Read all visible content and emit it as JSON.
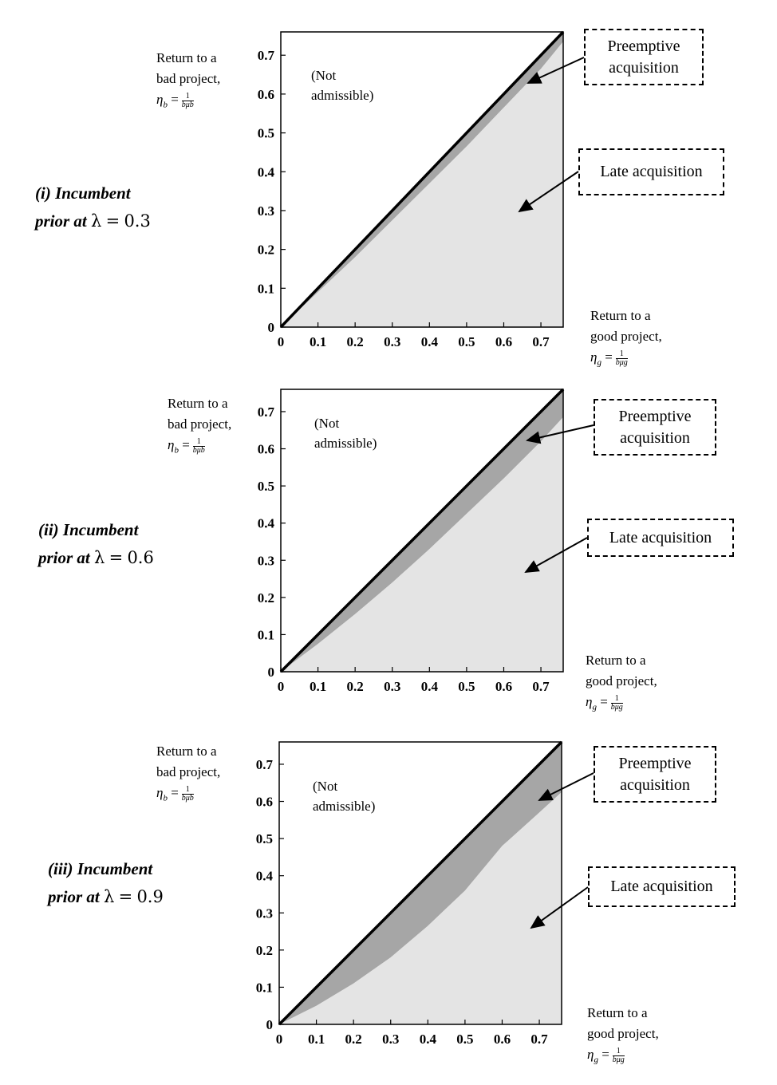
{
  "shared": {
    "ylabel_line1": "Return to a",
    "ylabel_line2": "bad project,",
    "ylabel_eta": "η",
    "ylabel_sub": "b",
    "ylabel_eq": "=",
    "ylabel_frac_num": "1",
    "ylabel_frac_den": "bμb",
    "xlabel_line1": "Return to a",
    "xlabel_line2": "good project,",
    "xlabel_eta": "η",
    "xlabel_sub": "g",
    "xlabel_eq": "=",
    "xlabel_frac_num": "1",
    "xlabel_frac_den": "bμg",
    "na_line1": "(Not",
    "na_line2": "admissible)",
    "preemptive_line1": "Preemptive",
    "preemptive_line2": "acquisition",
    "late_label": "Late acquisition",
    "tick_labels": [
      "0",
      "0.1",
      "0.2",
      "0.3",
      "0.4",
      "0.5",
      "0.6",
      "0.7"
    ],
    "colors": {
      "preemptive": "#a6a6a6",
      "late": "#e4e4e4",
      "diagonal": "#000000"
    }
  },
  "chart_data": [
    {
      "type": "area",
      "title_line1": "(i) Incumbent",
      "title_line2": "prior at",
      "lambda_symbol": "λ",
      "lambda_eq": "=",
      "lambda_value": "0.3",
      "xlim": [
        0,
        0.76
      ],
      "ylim": [
        0,
        0.76
      ],
      "diagonal": [
        [
          0,
          0
        ],
        [
          0.76,
          0.76
        ]
      ],
      "boundary_x": [
        0,
        0.1,
        0.2,
        0.3,
        0.4,
        0.5,
        0.6,
        0.7,
        0.76
      ],
      "boundary_y": [
        0,
        0.09,
        0.18,
        0.275,
        0.37,
        0.465,
        0.565,
        0.665,
        0.735
      ]
    },
    {
      "type": "area",
      "title_line1": "(ii) Incumbent",
      "title_line2": "prior at",
      "lambda_symbol": "λ",
      "lambda_eq": "=",
      "lambda_value": "0.6",
      "xlim": [
        0,
        0.76
      ],
      "ylim": [
        0,
        0.76
      ],
      "diagonal": [
        [
          0,
          0
        ],
        [
          0.76,
          0.76
        ]
      ],
      "boundary_x": [
        0,
        0.1,
        0.2,
        0.3,
        0.4,
        0.5,
        0.6,
        0.7,
        0.76
      ],
      "boundary_y": [
        0,
        0.075,
        0.155,
        0.24,
        0.33,
        0.425,
        0.52,
        0.62,
        0.685
      ]
    },
    {
      "type": "area",
      "title_line1": "(iii) Incumbent",
      "title_line2": "prior at",
      "lambda_symbol": "λ",
      "lambda_eq": "=",
      "lambda_value": "0.9",
      "xlim": [
        0,
        0.76
      ],
      "ylim": [
        0,
        0.76
      ],
      "diagonal": [
        [
          0,
          0
        ],
        [
          0.76,
          0.76
        ]
      ],
      "boundary_x": [
        0,
        0.1,
        0.2,
        0.3,
        0.4,
        0.5,
        0.55,
        0.6,
        0.7,
        0.76
      ],
      "boundary_y": [
        0,
        0.05,
        0.11,
        0.18,
        0.265,
        0.36,
        0.42,
        0.48,
        0.57,
        0.625
      ]
    }
  ]
}
